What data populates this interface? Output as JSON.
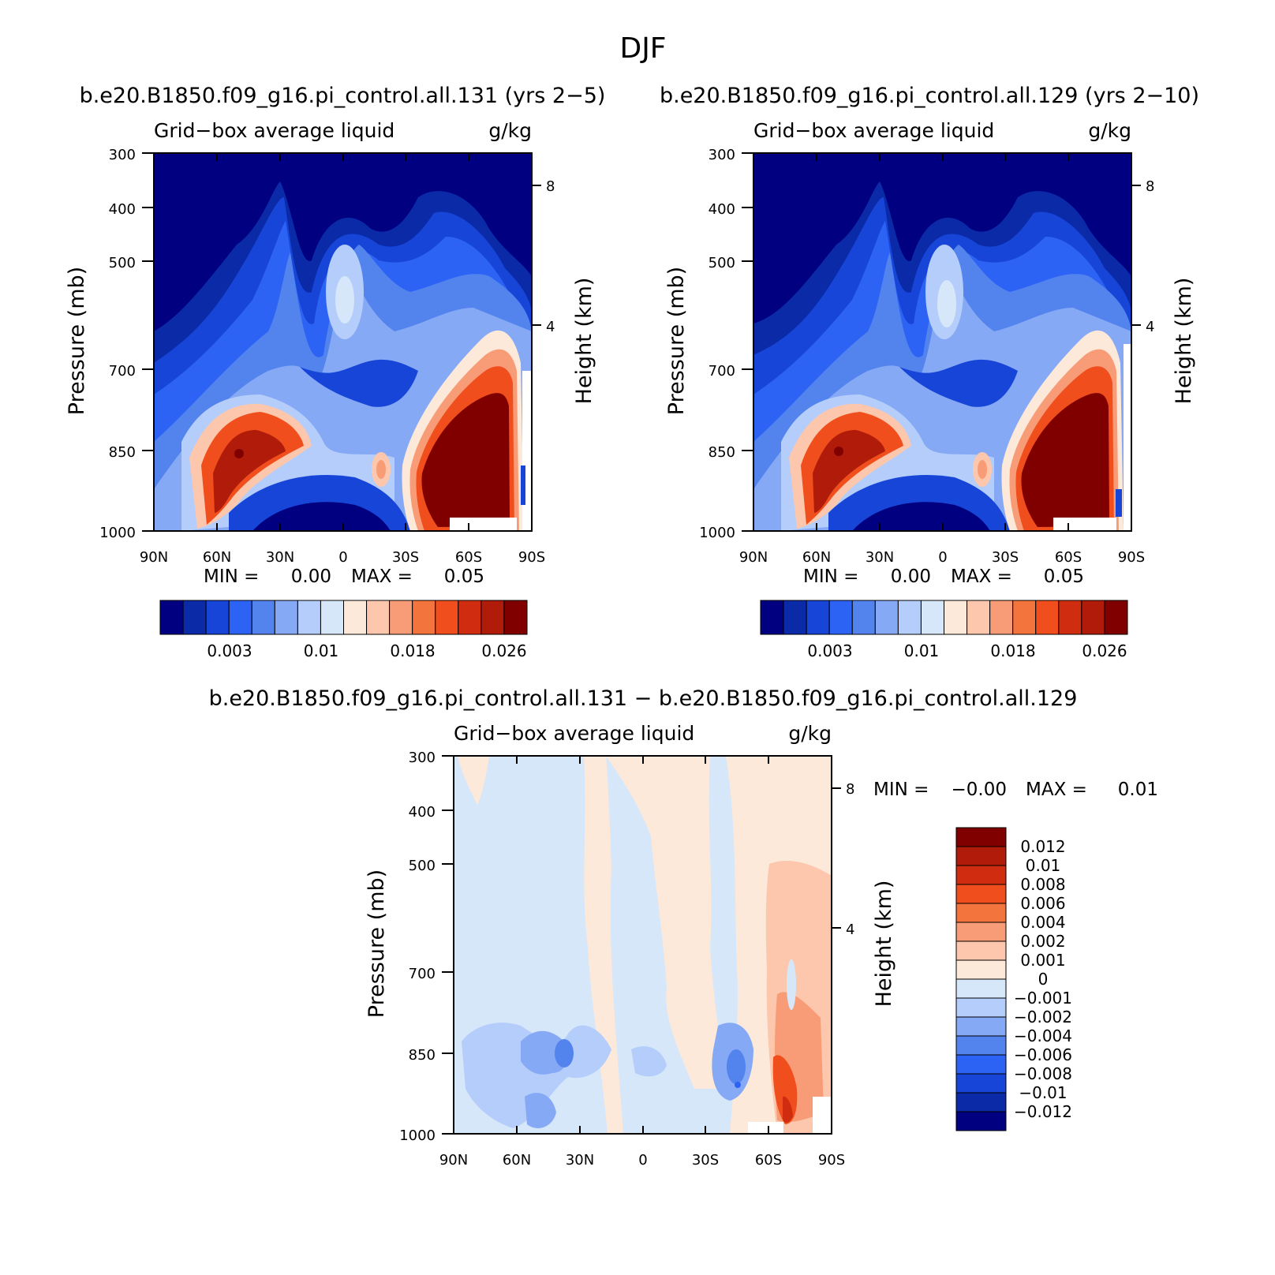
{
  "figure_title": "DJF",
  "colors": {
    "seq": [
      "#000080",
      "#0a2aa8",
      "#1745d8",
      "#2d63f5",
      "#5384ee",
      "#86a9f5",
      "#b5cdfa",
      "#d7e7fa",
      "#fde9d9",
      "#fcc7ac",
      "#f89c77",
      "#f4743d",
      "#f04e1c",
      "#d02c10",
      "#b01b0a",
      "#800000"
    ],
    "div": [
      "#000080",
      "#0a2aa8",
      "#1745d8",
      "#2d63f5",
      "#5384ee",
      "#86a9f5",
      "#b5cdfa",
      "#d7e7fa",
      "#fde9d9",
      "#fcc7ac",
      "#f89c77",
      "#f4743d",
      "#f04e1c",
      "#d02c10",
      "#b01b0a",
      "#800000"
    ]
  },
  "chart_data": [
    {
      "type": "heatmap",
      "title": "b.e20.B1850.f09_g16.pi_control.all.131 (yrs 2−5)",
      "subtitle_left": "Grid−box average liquid",
      "subtitle_right": "g/kg",
      "ylabel": "Pressure (mb)",
      "ylabel_right": "Height (km)",
      "xticks": [
        "90N",
        "60N",
        "30N",
        "0",
        "30S",
        "60S",
        "90S"
      ],
      "yticks": [
        "300",
        "400",
        "500",
        "700",
        "850",
        "1000"
      ],
      "yticks_right": [
        "8",
        "4"
      ],
      "min_max": {
        "min_label": "MIN =",
        "min": "0.00",
        "max_label": "MAX =",
        "max": "0.05"
      },
      "colorbar_labels": [
        "0.003",
        "0.01",
        "0.018",
        "0.026"
      ],
      "z_range": [
        0,
        0.05
      ],
      "note": "zonal-mean cross section, latitude 90N to 90S vs pressure 300 to 1000 mb"
    },
    {
      "type": "heatmap",
      "title": "b.e20.B1850.f09_g16.pi_control.all.129 (yrs 2−10)",
      "subtitle_left": "Grid−box average liquid",
      "subtitle_right": "g/kg",
      "ylabel": "Pressure (mb)",
      "ylabel_right": "Height (km)",
      "xticks": [
        "90N",
        "60N",
        "30N",
        "0",
        "30S",
        "60S",
        "90S"
      ],
      "yticks": [
        "300",
        "400",
        "500",
        "700",
        "850",
        "1000"
      ],
      "yticks_right": [
        "8",
        "4"
      ],
      "min_max": {
        "min_label": "MIN =",
        "min": "0.00",
        "max_label": "MAX =",
        "max": "0.05"
      },
      "colorbar_labels": [
        "0.003",
        "0.01",
        "0.018",
        "0.026"
      ],
      "z_range": [
        0,
        0.05
      ]
    },
    {
      "type": "heatmap",
      "title": "b.e20.B1850.f09_g16.pi_control.all.131 − b.e20.B1850.f09_g16.pi_control.all.129",
      "subtitle_left": "Grid−box average liquid",
      "subtitle_right": "g/kg",
      "ylabel": "Pressure (mb)",
      "ylabel_right": "Height (km)",
      "xticks": [
        "90N",
        "60N",
        "30N",
        "0",
        "30S",
        "60S",
        "90S"
      ],
      "yticks": [
        "300",
        "400",
        "500",
        "700",
        "850",
        "1000"
      ],
      "yticks_right": [
        "8",
        "4"
      ],
      "min_max": {
        "min_label": "MIN =",
        "min": "−0.00",
        "max_label": "MAX =",
        "max": "0.01"
      },
      "colorbar_labels": [
        "0.012",
        "0.01",
        "0.008",
        "0.006",
        "0.004",
        "0.002",
        "0.001",
        "0",
        "−0.001",
        "−0.002",
        "−0.004",
        "−0.006",
        "−0.008",
        "−0.01",
        "−0.012"
      ],
      "z_range": [
        -0.01,
        0.01
      ]
    }
  ]
}
